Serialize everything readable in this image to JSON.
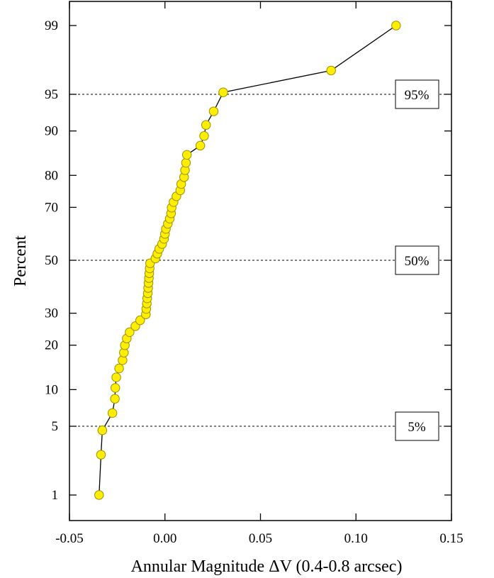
{
  "chart_data": {
    "type": "scatter",
    "title": "",
    "xlabel": "Annular Magnitude ΔV (0.4-0.8 arcsec)",
    "ylabel": "Percent",
    "xlim": [
      -0.05,
      0.15
    ],
    "x_ticks": [
      -0.05,
      0,
      0.05,
      0.1,
      0.15
    ],
    "x_tick_labels": [
      "-0.05",
      "0.00",
      "0.05",
      "0.10",
      "0.15"
    ],
    "y_scale": "probability",
    "y_ticks": [
      1,
      5,
      10,
      20,
      30,
      50,
      70,
      80,
      90,
      95,
      99
    ],
    "y_tick_labels": [
      "1",
      "5",
      "10",
      "20",
      "30",
      "50",
      "70",
      "80",
      "90",
      "95",
      "99"
    ],
    "grid": false,
    "marker_color": "#ffee00",
    "line_color": "#000000",
    "reference_lines": [
      {
        "percent": 95,
        "label": "95%"
      },
      {
        "percent": 50,
        "label": "50%"
      },
      {
        "percent": 5,
        "label": "5%"
      }
    ],
    "series": [
      {
        "points": [
          {
            "x": -0.0345,
            "y": 1.0
          },
          {
            "x": -0.0335,
            "y": 2.7
          },
          {
            "x": -0.0328,
            "y": 4.6
          },
          {
            "x": -0.0275,
            "y": 6.5
          },
          {
            "x": -0.0262,
            "y": 8.5
          },
          {
            "x": -0.026,
            "y": 10.3
          },
          {
            "x": -0.0255,
            "y": 12.3
          },
          {
            "x": -0.024,
            "y": 14.2
          },
          {
            "x": -0.0222,
            "y": 16.1
          },
          {
            "x": -0.0215,
            "y": 18.0
          },
          {
            "x": -0.021,
            "y": 20.0
          },
          {
            "x": -0.02,
            "y": 21.9
          },
          {
            "x": -0.0185,
            "y": 23.8
          },
          {
            "x": -0.0155,
            "y": 25.7
          },
          {
            "x": -0.013,
            "y": 27.6
          },
          {
            "x": -0.01,
            "y": 29.6
          },
          {
            "x": -0.0098,
            "y": 31.5
          },
          {
            "x": -0.0095,
            "y": 33.4
          },
          {
            "x": -0.0093,
            "y": 35.3
          },
          {
            "x": -0.009,
            "y": 37.2
          },
          {
            "x": -0.0088,
            "y": 39.2
          },
          {
            "x": -0.0086,
            "y": 41.1
          },
          {
            "x": -0.0084,
            "y": 43.0
          },
          {
            "x": -0.0082,
            "y": 44.9
          },
          {
            "x": -0.008,
            "y": 46.8
          },
          {
            "x": -0.0078,
            "y": 48.8
          },
          {
            "x": -0.005,
            "y": 50.7
          },
          {
            "x": -0.004,
            "y": 52.6
          },
          {
            "x": -0.003,
            "y": 54.5
          },
          {
            "x": -0.0015,
            "y": 56.4
          },
          {
            "x": -0.0005,
            "y": 58.4
          },
          {
            "x": 0.0,
            "y": 60.3
          },
          {
            "x": 0.0005,
            "y": 62.2
          },
          {
            "x": 0.0015,
            "y": 64.1
          },
          {
            "x": 0.0025,
            "y": 66.0
          },
          {
            "x": 0.0032,
            "y": 67.9
          },
          {
            "x": 0.0035,
            "y": 69.9
          },
          {
            "x": 0.0045,
            "y": 71.8
          },
          {
            "x": 0.006,
            "y": 73.7
          },
          {
            "x": 0.008,
            "y": 75.6
          },
          {
            "x": 0.0085,
            "y": 77.5
          },
          {
            "x": 0.01,
            "y": 79.5
          },
          {
            "x": 0.0105,
            "y": 81.4
          },
          {
            "x": 0.011,
            "y": 83.3
          },
          {
            "x": 0.0115,
            "y": 85.2
          },
          {
            "x": 0.0185,
            "y": 87.2
          },
          {
            "x": 0.0205,
            "y": 89.1
          },
          {
            "x": 0.0215,
            "y": 91.0
          },
          {
            "x": 0.0255,
            "y": 93.0
          },
          {
            "x": 0.0305,
            "y": 95.2
          },
          {
            "x": 0.087,
            "y": 97.0
          },
          {
            "x": 0.121,
            "y": 99.0
          }
        ]
      }
    ]
  }
}
